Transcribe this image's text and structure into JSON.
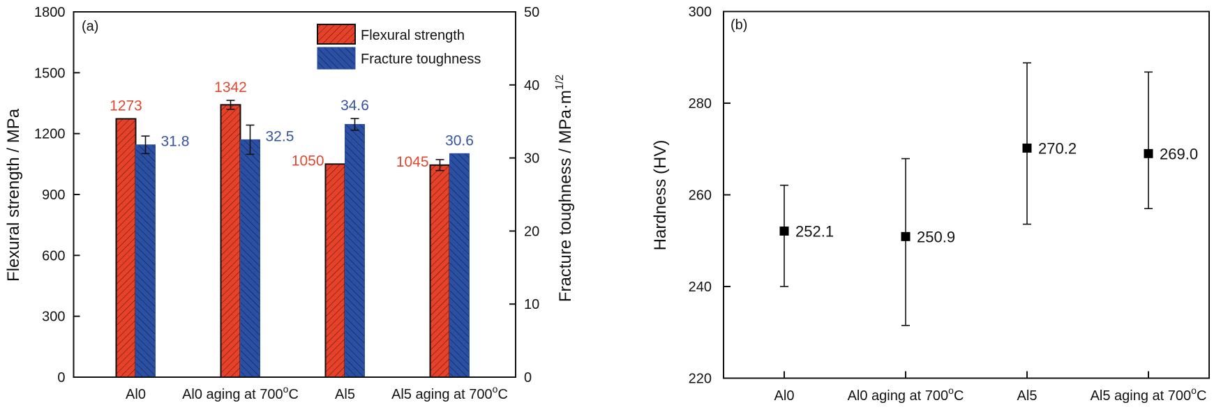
{
  "colors": {
    "flexural": "#e8412a",
    "toughness": "#2a4fa3",
    "flexural_label": "#e0472f",
    "toughness_label": "#3553a1",
    "axis": "#111111"
  },
  "chart_data": [
    {
      "type": "bar",
      "panel_tag": "(a)",
      "categories": [
        "Al0",
        "Al0 aging at 700°C",
        "Al5",
        "Al5 aging at 700°C"
      ],
      "category_parts": [
        {
          "main": "Al0",
          "sup": ""
        },
        {
          "main": "Al0 aging at 700",
          "sup": "o",
          "tail": "C"
        },
        {
          "main": "Al5",
          "sup": ""
        },
        {
          "main": "Al5 aging at 700",
          "sup": "o",
          "tail": "C"
        }
      ],
      "ylabel": "Flexural strength / MPa",
      "ylabel_right": "Fracture toughness / MPa·m",
      "ylabel_right_sup": "1/2",
      "ylim": [
        0,
        1800
      ],
      "yticks": [
        0,
        300,
        600,
        900,
        1200,
        1500,
        1800
      ],
      "ylim_right": [
        0,
        50
      ],
      "yticks_right": [
        0,
        10,
        20,
        30,
        40,
        50
      ],
      "legend_position": "top-right",
      "grid": false,
      "series": [
        {
          "name": "Flexural strength",
          "axis": "left",
          "values": [
            1273,
            1342,
            1050,
            1045
          ],
          "labels": [
            "1273",
            "1342",
            "1050",
            "1045"
          ],
          "error": [
            null,
            22,
            null,
            27
          ]
        },
        {
          "name": "Fracture toughness",
          "axis": "right",
          "values": [
            31.8,
            32.5,
            34.6,
            30.6
          ],
          "labels": [
            "31.8",
            "32.5",
            "34.6",
            "30.6"
          ],
          "error": [
            1.2,
            2.0,
            0.8,
            null
          ]
        }
      ]
    },
    {
      "type": "scatter",
      "panel_tag": "(b)",
      "categories": [
        "Al0",
        "Al0 aging at 700°C",
        "Al5",
        "Al5 aging at 700°C"
      ],
      "category_parts": [
        {
          "main": "Al0",
          "sup": ""
        },
        {
          "main": "Al0 aging at 700",
          "sup": "o",
          "tail": "C"
        },
        {
          "main": "Al5",
          "sup": ""
        },
        {
          "main": "Al5 aging at 700",
          "sup": "o",
          "tail": "C"
        }
      ],
      "ylabel": "Hardness (HV)",
      "xlabel": "",
      "ylim": [
        220,
        300
      ],
      "yticks": [
        220,
        240,
        260,
        280,
        300
      ],
      "grid": false,
      "series": [
        {
          "name": "Hardness",
          "values": [
            252.1,
            250.9,
            270.2,
            269.0
          ],
          "labels": [
            "252.1",
            "250.9",
            "270.2",
            "269.0"
          ],
          "error_upper": [
            262.1,
            267.9,
            288.8,
            286.8
          ],
          "error_lower": [
            240.0,
            231.5,
            253.6,
            257.0
          ]
        }
      ]
    }
  ]
}
